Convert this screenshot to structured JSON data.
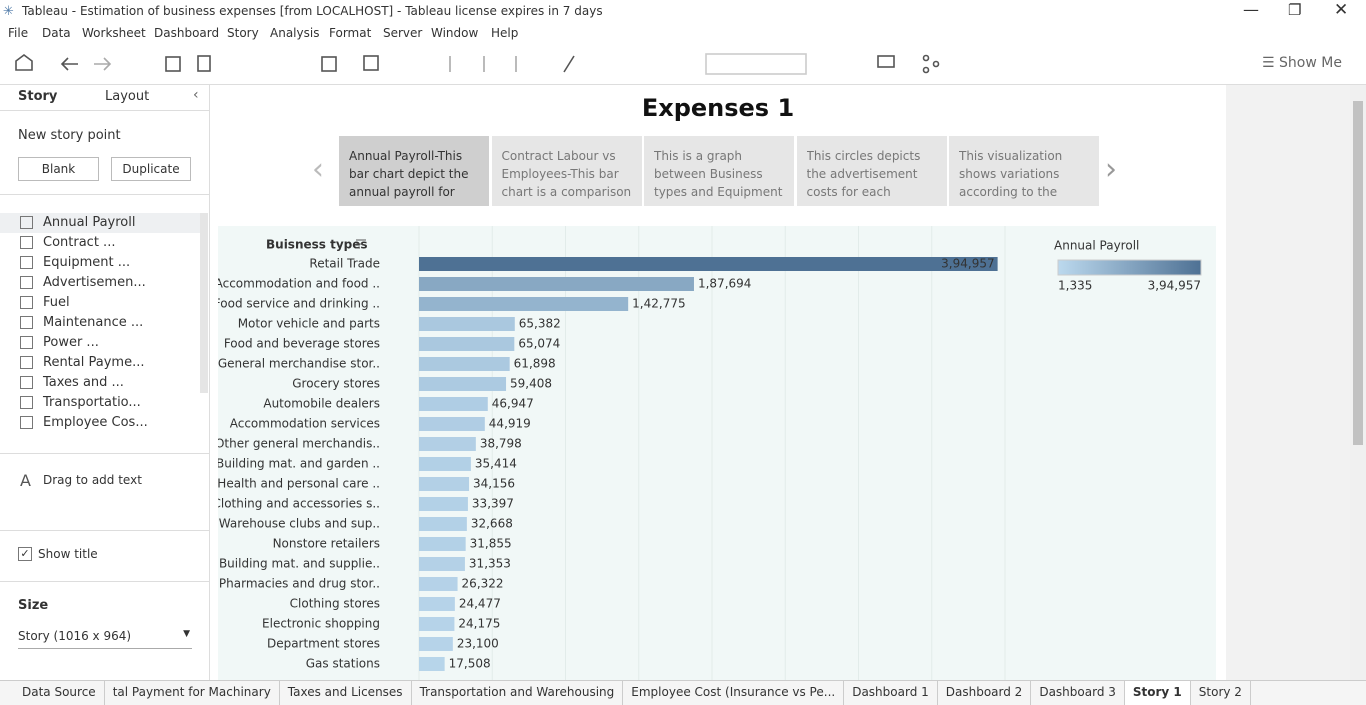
{
  "window": {
    "title": "Tableau - Estimation of business expenses [from LOCALHOST] - Tableau license expires in 7 days"
  },
  "menu": [
    "File",
    "Data",
    "Worksheet",
    "Dashboard",
    "Story",
    "Analysis",
    "Format",
    "Server",
    "Window",
    "Help"
  ],
  "toolbar": {
    "show_me": "Show Me"
  },
  "sidebar": {
    "tabs": [
      "Story",
      "Layout"
    ],
    "new_story_point": "New story point",
    "buttons": [
      "Blank",
      "Duplicate"
    ],
    "sheets": [
      "Annual Payroll",
      "Contract ...",
      "Equipment ...",
      "Advertisemen...",
      "Fuel",
      "Maintenance ...",
      "Power ...",
      "Rental Payme...",
      "Taxes and ...",
      "Transportatio...",
      "Employee Cos..."
    ],
    "drag_text": "Drag to add text",
    "show_title": "Show title",
    "size_label": "Size",
    "size_value": "Story (1016 x 964)"
  },
  "story": {
    "title": "Expenses 1",
    "points": [
      "Annual Payroll-This bar chart depict  the annual payroll for",
      "Contract Labour vs Employees-This bar chart is a comparison",
      "This is a graph between Business types and Equipment",
      "This circles depicts the advertisement costs for each Business",
      "This visualization shows variations according to the"
    ]
  },
  "chart_data": {
    "type": "bar",
    "orientation": "horizontal",
    "field_header": "Buisness types",
    "categories": [
      "Retail Trade",
      "Accommodation and food ..",
      "Food service and drinking ..",
      "Motor vehicle and parts",
      "Food and beverage stores",
      "General merchandise stor..",
      "Grocery stores",
      "Automobile dealers",
      "Accommodation services",
      "Other general merchandis..",
      "Building mat. and garden ..",
      "Health and personal care ..",
      "Clothing and accessories s..",
      "Warehouse clubs and sup..",
      "Nonstore retailers",
      "Building mat. and supplie..",
      "Pharmacies and drug stor..",
      "Clothing stores",
      "Electronic shopping",
      "Department stores",
      "Gas stations"
    ],
    "values": [
      394957,
      187694,
      142775,
      65382,
      65074,
      61898,
      59408,
      46947,
      44919,
      38798,
      35414,
      34156,
      33397,
      32668,
      31855,
      31353,
      26322,
      24477,
      24175,
      23100,
      17508
    ],
    "value_labels": [
      "3,94,957",
      "1,87,694",
      "1,42,775",
      "65,382",
      "65,074",
      "61,898",
      "59,408",
      "46,947",
      "44,919",
      "38,798",
      "35,414",
      "34,156",
      "33,397",
      "32,668",
      "31,855",
      "31,353",
      "26,322",
      "24,477",
      "24,175",
      "23,100",
      "17,508"
    ],
    "xlim": [
      0,
      400000
    ],
    "xticks": [
      0,
      50000,
      100000,
      150000,
      200000,
      250000,
      300000,
      350000,
      400000
    ],
    "grid": true,
    "colors": [
      "#bcd9ee",
      "#4e7194"
    ],
    "legend": {
      "title": "Annual Payroll",
      "min": {
        "value": 1335,
        "label": "1,335"
      },
      "max": {
        "value": 394957,
        "label": "3,94,957"
      }
    }
  },
  "tabs": [
    "Data Source",
    "tal Payment for Machinary",
    "Taxes and Licenses",
    "Transportation and Warehousing",
    "Employee Cost (Insurance vs Pe...",
    "Dashboard 1",
    "Dashboard 2",
    "Dashboard 3",
    "Story 1",
    "Story 2"
  ],
  "active_tab": 8
}
